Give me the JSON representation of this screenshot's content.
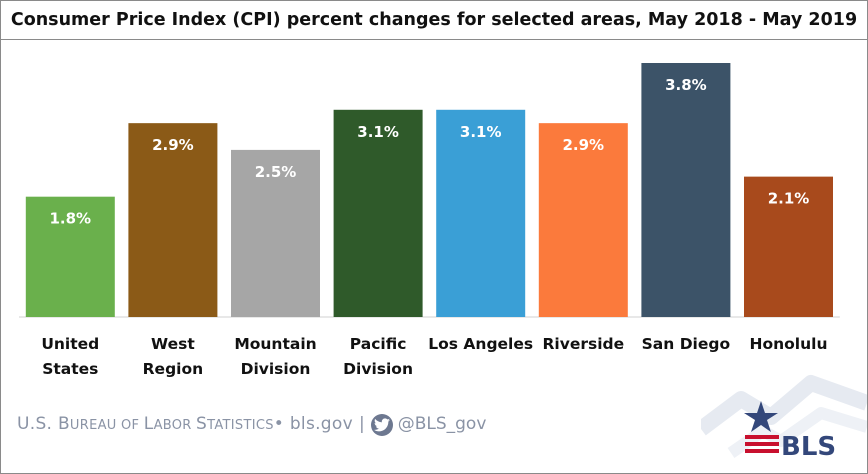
{
  "chart_data": {
    "type": "bar",
    "title": "Consumer Price Index (CPI) percent changes for selected areas, May 2018 - May 2019",
    "categories": [
      [
        "United",
        "States"
      ],
      [
        "West",
        "Region"
      ],
      [
        "Mountain",
        "Division"
      ],
      [
        "Pacific",
        "Division"
      ],
      [
        "Los Angeles"
      ],
      [
        "Riverside"
      ],
      [
        "San Diego"
      ],
      [
        "Honolulu"
      ]
    ],
    "values": [
      1.8,
      2.9,
      2.5,
      3.1,
      3.1,
      2.9,
      3.8,
      2.1
    ],
    "data_labels": [
      "1.8%",
      "2.9%",
      "2.5%",
      "3.1%",
      "3.1%",
      "2.9%",
      "3.8%",
      "2.1%"
    ],
    "colors": [
      "#6ab04c",
      "#8b5a17",
      "#a6a6a6",
      "#2f5a2a",
      "#3a9fd6",
      "#fb7a3c",
      "#3c5368",
      "#a84a1c"
    ],
    "ylim": [
      0,
      3.8
    ],
    "grid": false,
    "legend": "none"
  },
  "footer": {
    "agency_first": "U.S. B",
    "agency_sc1": "UREAU OF ",
    "agency_l": "L",
    "agency_sc2": "ABOR ",
    "agency_s": "S",
    "agency_sc3": "TATISTICS",
    "bullet_site": " • bls.gov ",
    "divider": "|",
    "twitter_handle": "@BLS_gov",
    "twitter_icon": "twitter-bird-icon"
  },
  "logo": {
    "text": "BLS",
    "icon": "bls-star-logo-icon"
  }
}
